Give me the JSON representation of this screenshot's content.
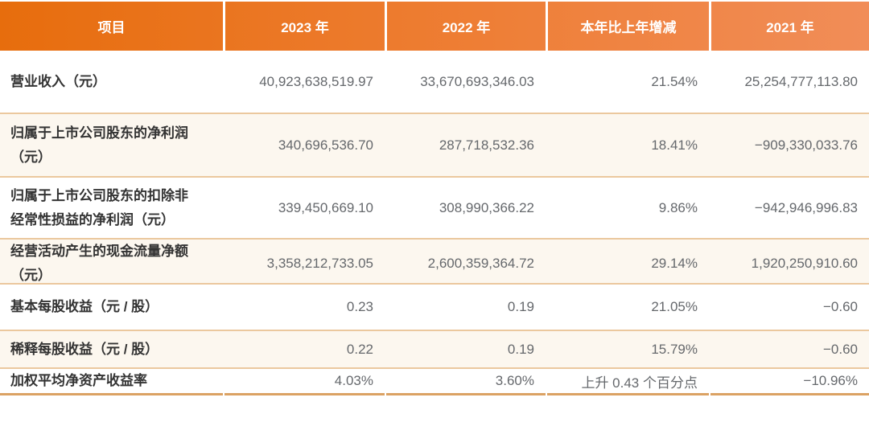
{
  "table": {
    "columns": [
      {
        "label": "项目"
      },
      {
        "label": "2023 年"
      },
      {
        "label": "2022 年"
      },
      {
        "label": "本年比上年增减"
      },
      {
        "label": "2021 年"
      }
    ],
    "rows": [
      {
        "item": "营业收入（元）",
        "y2023": "40,923,638,519.97",
        "y2022": "33,670,693,346.03",
        "yoy": "21.54%",
        "y2021": "25,254,777,113.80"
      },
      {
        "item": "归属于上市公司股东的净利润（元）",
        "y2023": "340,696,536.70",
        "y2022": "287,718,532.36",
        "yoy": "18.41%",
        "y2021": "−909,330,033.76"
      },
      {
        "item": "归属于上市公司股东的扣除非经常性损益的净利润（元）",
        "y2023": "339,450,669.10",
        "y2022": "308,990,366.22",
        "yoy": "9.86%",
        "y2021": "−942,946,996.83"
      },
      {
        "item": "经营活动产生的现金流量净额（元）",
        "y2023": "3,358,212,733.05",
        "y2022": "2,600,359,364.72",
        "yoy": "29.14%",
        "y2021": "1,920,250,910.60"
      },
      {
        "item": "基本每股收益（元 / 股）",
        "y2023": "0.23",
        "y2022": "0.19",
        "yoy": "21.05%",
        "y2021": "−0.60"
      },
      {
        "item": "稀释每股收益（元 / 股）",
        "y2023": "0.22",
        "y2022": "0.19",
        "yoy": "15.79%",
        "y2021": "−0.60"
      },
      {
        "item": "加权平均净资产收益率",
        "y2023": "4.03%",
        "y2022": "3.60%",
        "yoy": "上升 0.43 个百分点",
        "y2021": "−10.96%"
      }
    ]
  },
  "colors": {
    "header_gradient_start": "#e76d0d",
    "header_gradient_end": "#f18d58",
    "header_text": "#ffffff",
    "row_stripe": "#fcf7ef",
    "row_divider": "#ebc89e",
    "bottom_bar": "#dba263",
    "label_text": "#333333",
    "value_text": "#65686c"
  }
}
